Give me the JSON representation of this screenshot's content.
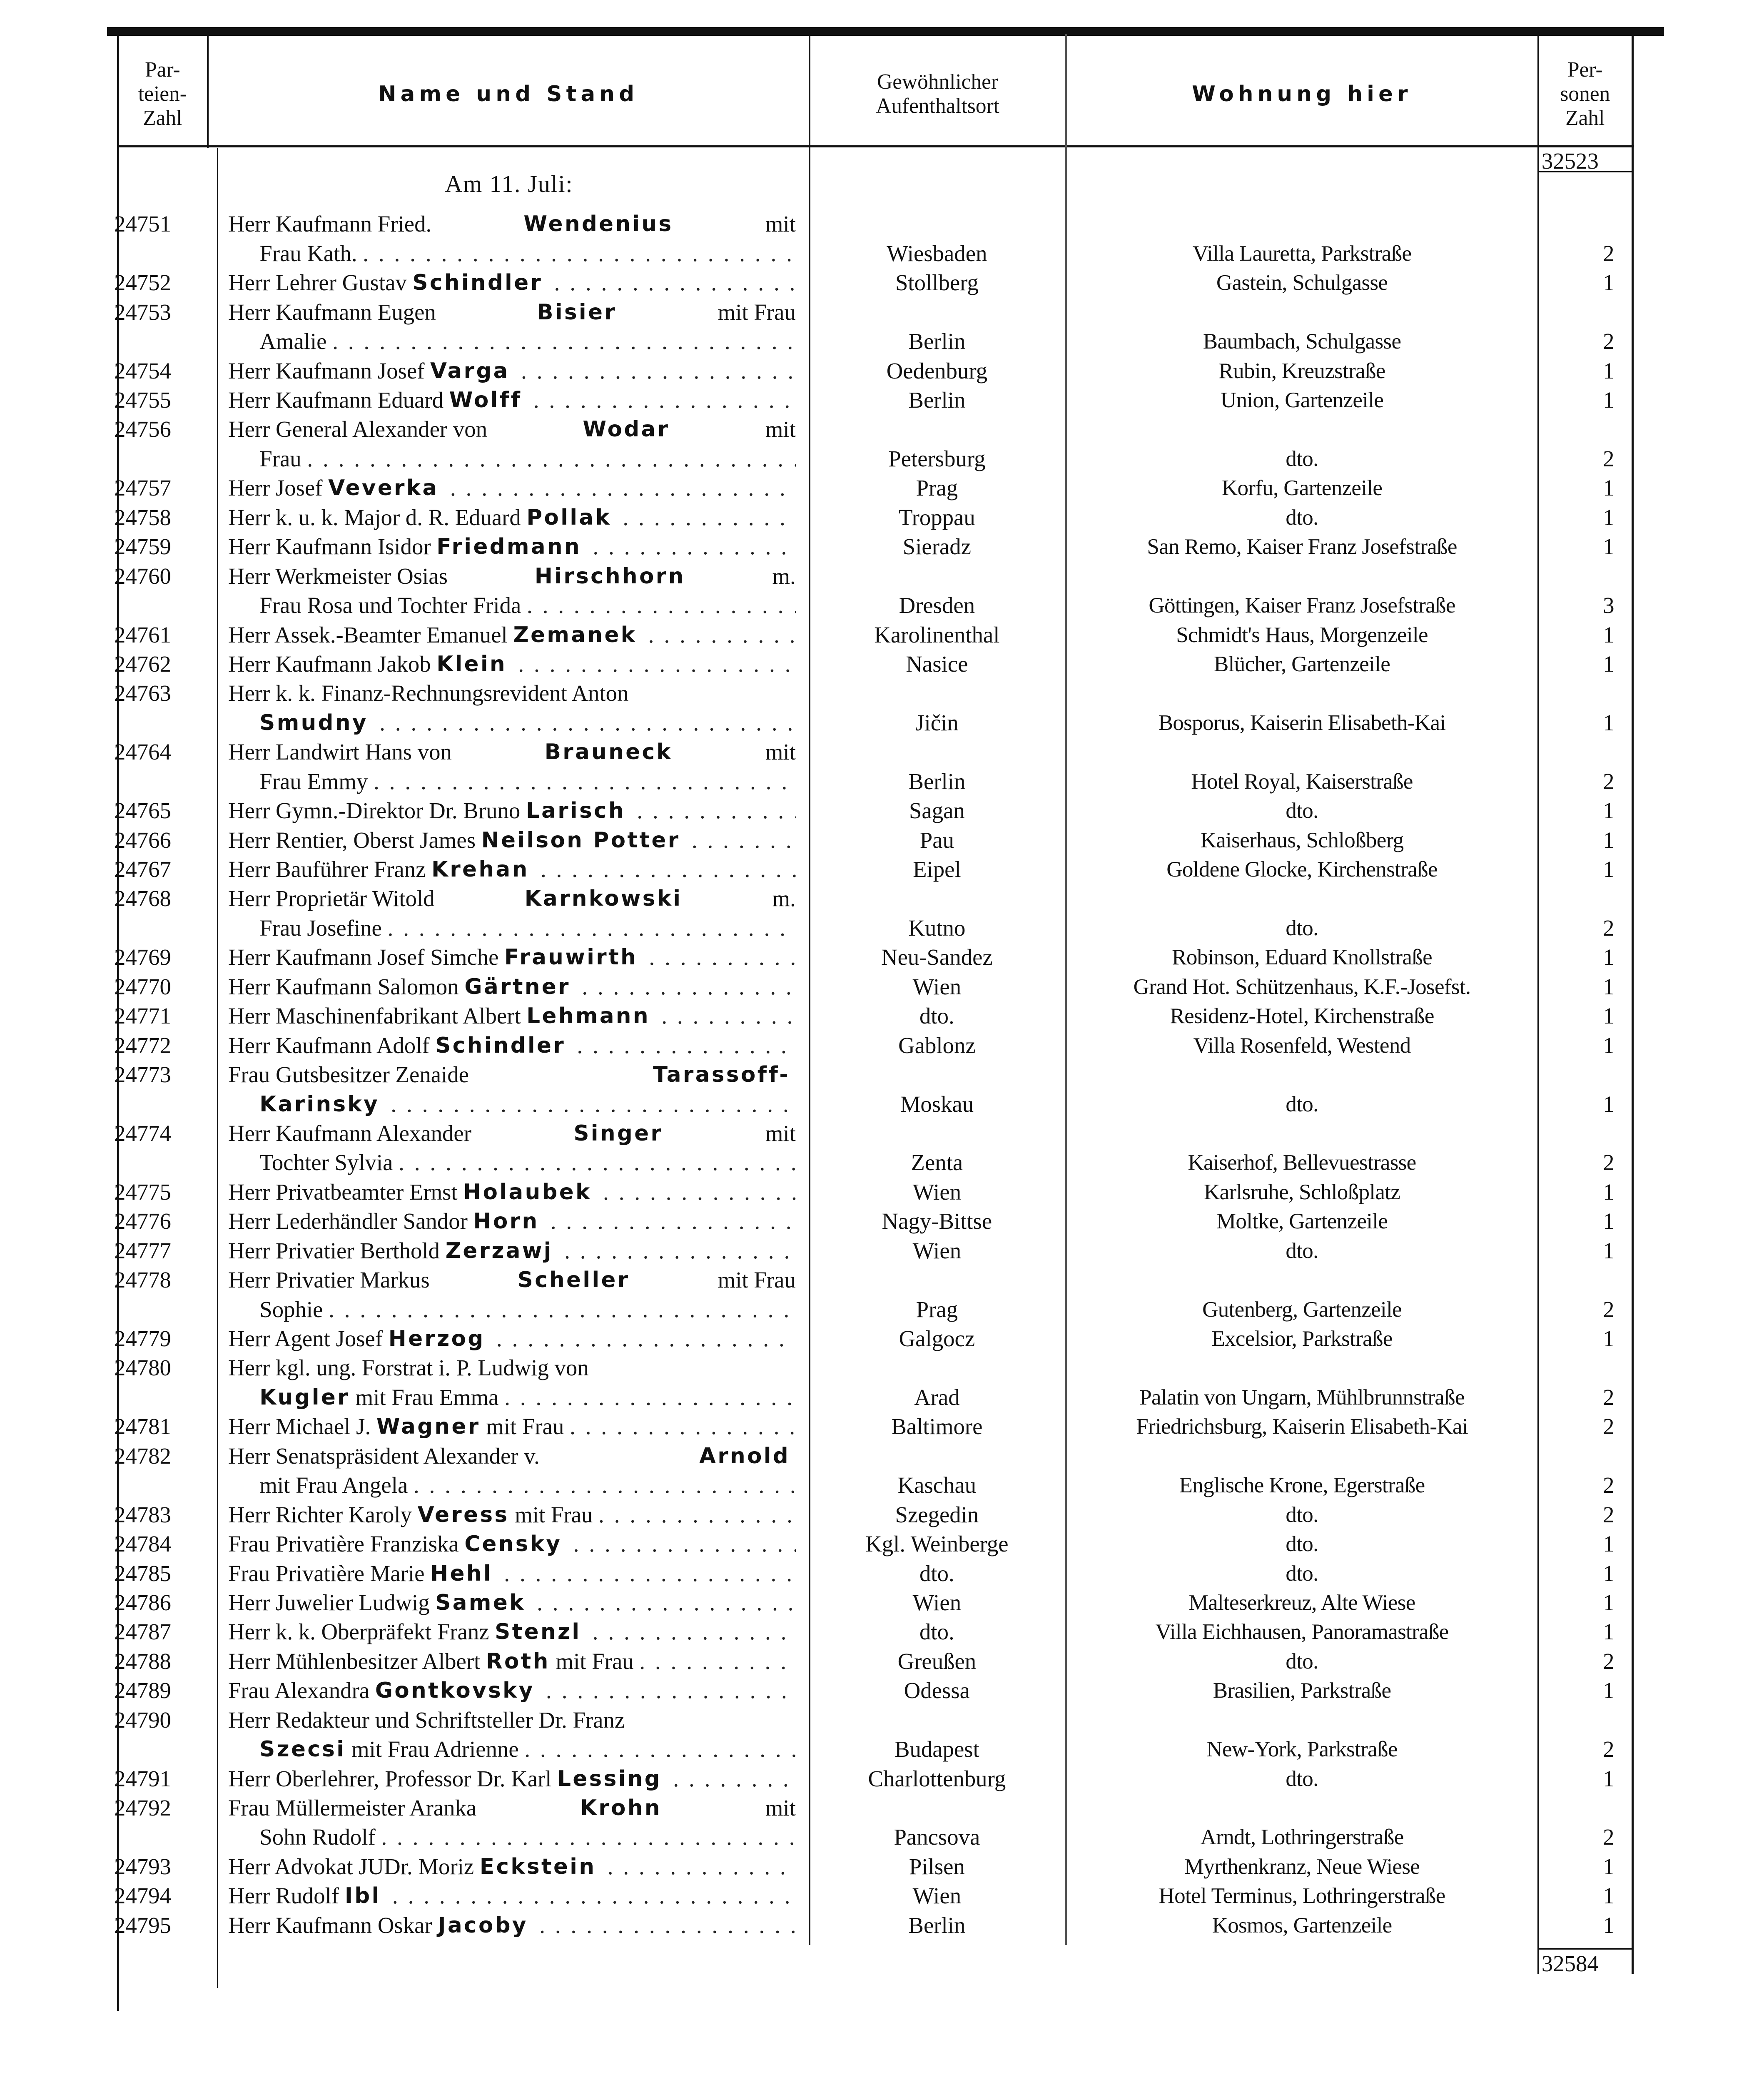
{
  "header": {
    "col_number": [
      "Par-",
      "teien-",
      "Zahl"
    ],
    "col_name": "Name und Stand",
    "col_origin": [
      "Gewöhnlicher",
      "Aufenthaltsort"
    ],
    "col_residence": "Wohnung hier",
    "col_persons": [
      "Per-",
      "sonen",
      "Zahl"
    ]
  },
  "carried_total": "32523",
  "date_heading": "Am 11. Juli:",
  "final_total": "32584",
  "entries": [
    {
      "no": "24751",
      "lines": [
        {
          "pre": "Herr Kaufmann Fried.",
          "bold": "Wendenius",
          "post": "mit"
        },
        {
          "pre": "Frau Kath."
        }
      ],
      "origin": "Wiesbaden",
      "residence": "Villa Lauretta, Parkstraße",
      "persons": "2"
    },
    {
      "no": "24752",
      "lines": [
        {
          "pre": "Herr Lehrer Gustav",
          "bold": "Schindler"
        }
      ],
      "origin": "Stollberg",
      "residence": "Gastein, Schulgasse",
      "persons": "1"
    },
    {
      "no": "24753",
      "lines": [
        {
          "pre": "Herr Kaufmann Eugen",
          "bold": "Bisier",
          "post": "mit Frau"
        },
        {
          "pre": "Amalie"
        }
      ],
      "origin": "Berlin",
      "residence": "Baumbach, Schulgasse",
      "persons": "2"
    },
    {
      "no": "24754",
      "lines": [
        {
          "pre": "Herr Kaufmann Josef",
          "bold": "Varga"
        }
      ],
      "origin": "Oedenburg",
      "residence": "Rubin, Kreuzstraße",
      "persons": "1"
    },
    {
      "no": "24755",
      "lines": [
        {
          "pre": "Herr Kaufmann Eduard",
          "bold": "Wolff"
        }
      ],
      "origin": "Berlin",
      "residence": "Union, Gartenzeile",
      "persons": "1"
    },
    {
      "no": "24756",
      "lines": [
        {
          "pre": "Herr General Alexander von",
          "bold": "Wodar",
          "post": "mit"
        },
        {
          "pre": "Frau"
        }
      ],
      "origin": "Petersburg",
      "residence": "dto.",
      "persons": "2"
    },
    {
      "no": "24757",
      "lines": [
        {
          "pre": "Herr Josef",
          "bold": "Veverka"
        }
      ],
      "origin": "Prag",
      "residence": "Korfu, Gartenzeile",
      "persons": "1"
    },
    {
      "no": "24758",
      "lines": [
        {
          "pre": "Herr k. u. k. Major d. R. Eduard",
          "bold": "Pollak"
        }
      ],
      "origin": "Troppau",
      "residence": "dto.",
      "persons": "1"
    },
    {
      "no": "24759",
      "lines": [
        {
          "pre": "Herr Kaufmann Isidor",
          "bold": "Friedmann"
        }
      ],
      "origin": "Sieradz",
      "residence": "San Remo, Kaiser Franz Josefstraße",
      "persons": "1"
    },
    {
      "no": "24760",
      "lines": [
        {
          "pre": "Herr Werkmeister Osias",
          "bold": "Hirschhorn",
          "post": "m."
        },
        {
          "pre": "Frau Rosa und Tochter Frida"
        }
      ],
      "origin": "Dresden",
      "residence": "Göttingen, Kaiser Franz Josefstraße",
      "persons": "3"
    },
    {
      "no": "24761",
      "lines": [
        {
          "pre": "Herr Assek.-Beamter Emanuel",
          "bold": "Zemanek"
        }
      ],
      "origin": "Karolinenthal",
      "residence": "Schmidt's Haus, Morgenzeile",
      "persons": "1"
    },
    {
      "no": "24762",
      "lines": [
        {
          "pre": "Herr Kaufmann Jakob",
          "bold": "Klein"
        }
      ],
      "origin": "Nasice",
      "residence": "Blücher, Gartenzeile",
      "persons": "1"
    },
    {
      "no": "24763",
      "lines": [
        {
          "pre": "Herr k. k. Finanz-Rechnungsrevident Anton"
        },
        {
          "bold": "Smudny"
        }
      ],
      "origin": "Jičin",
      "residence": "Bosporus, Kaiserin Elisabeth-Kai",
      "persons": "1"
    },
    {
      "no": "24764",
      "lines": [
        {
          "pre": "Herr Landwirt Hans von",
          "bold": "Brauneck",
          "post": "mit"
        },
        {
          "pre": "Frau Emmy"
        }
      ],
      "origin": "Berlin",
      "residence": "Hotel Royal, Kaiserstraße",
      "persons": "2"
    },
    {
      "no": "24765",
      "lines": [
        {
          "pre": "Herr Gymn.-Direktor Dr. Bruno",
          "bold": "Larisch"
        }
      ],
      "origin": "Sagan",
      "residence": "dto.",
      "persons": "1"
    },
    {
      "no": "24766",
      "lines": [
        {
          "pre": "Herr Rentier, Oberst James",
          "bold": "Neilson Potter"
        }
      ],
      "origin": "Pau",
      "residence": "Kaiserhaus, Schloßberg",
      "persons": "1"
    },
    {
      "no": "24767",
      "lines": [
        {
          "pre": "Herr Bauführer Franz",
          "bold": "Krehan"
        }
      ],
      "origin": "Eipel",
      "residence": "Goldene Glocke, Kirchenstraße",
      "persons": "1"
    },
    {
      "no": "24768",
      "lines": [
        {
          "pre": "Herr Proprietär Witold",
          "bold": "Karnkowski",
          "post": "m."
        },
        {
          "pre": "Frau Josefine"
        }
      ],
      "origin": "Kutno",
      "residence": "dto.",
      "persons": "2"
    },
    {
      "no": "24769",
      "lines": [
        {
          "pre": "Herr Kaufmann Josef Simche",
          "bold": "Frauwirth"
        }
      ],
      "origin": "Neu-Sandez",
      "residence": "Robinson, Eduard Knollstraße",
      "persons": "1"
    },
    {
      "no": "24770",
      "lines": [
        {
          "pre": "Herr Kaufmann Salomon",
          "bold": "Gärtner"
        }
      ],
      "origin": "Wien",
      "residence": "Grand Hot. Schützenhaus, K.F.-Josefst.",
      "persons": "1"
    },
    {
      "no": "24771",
      "lines": [
        {
          "pre": "Herr Maschinenfabrikant Albert",
          "bold": "Lehmann"
        }
      ],
      "origin": "dto.",
      "residence": "Residenz-Hotel, Kirchenstraße",
      "persons": "1"
    },
    {
      "no": "24772",
      "lines": [
        {
          "pre": "Herr Kaufmann Adolf",
          "bold": "Schindler"
        }
      ],
      "origin": "Gablonz",
      "residence": "Villa Rosenfeld, Westend",
      "persons": "1"
    },
    {
      "no": "24773",
      "lines": [
        {
          "pre": "Frau Gutsbesitzer Zenaide",
          "bold": "Tarassoff-"
        },
        {
          "bold": "Karinsky"
        }
      ],
      "origin": "Moskau",
      "residence": "dto.",
      "persons": "1"
    },
    {
      "no": "24774",
      "lines": [
        {
          "pre": "Herr Kaufmann Alexander",
          "bold": "Singer",
          "post": "mit"
        },
        {
          "pre": "Tochter Sylvia"
        }
      ],
      "origin": "Zenta",
      "residence": "Kaiserhof, Bellevuestrasse",
      "persons": "2"
    },
    {
      "no": "24775",
      "lines": [
        {
          "pre": "Herr Privatbeamter Ernst",
          "bold": "Holaubek"
        }
      ],
      "origin": "Wien",
      "residence": "Karlsruhe, Schloßplatz",
      "persons": "1"
    },
    {
      "no": "24776",
      "lines": [
        {
          "pre": "Herr Lederhändler Sandor",
          "bold": "Horn"
        }
      ],
      "origin": "Nagy-Bittse",
      "residence": "Moltke, Gartenzeile",
      "persons": "1"
    },
    {
      "no": "24777",
      "lines": [
        {
          "pre": "Herr Privatier Berthold",
          "bold": "Zerzawj"
        }
      ],
      "origin": "Wien",
      "residence": "dto.",
      "persons": "1"
    },
    {
      "no": "24778",
      "lines": [
        {
          "pre": "Herr Privatier Markus",
          "bold": "Scheller",
          "post": "mit Frau"
        },
        {
          "pre": "Sophie"
        }
      ],
      "origin": "Prag",
      "residence": "Gutenberg, Gartenzeile",
      "persons": "2"
    },
    {
      "no": "24779",
      "lines": [
        {
          "pre": "Herr Agent Josef",
          "bold": "Herzog"
        }
      ],
      "origin": "Galgocz",
      "residence": "Excelsior, Parkstraße",
      "persons": "1"
    },
    {
      "no": "24780",
      "lines": [
        {
          "pre": "Herr kgl. ung. Forstrat i. P. Ludwig von"
        },
        {
          "bold": "Kugler",
          "post": "mit Frau Emma"
        }
      ],
      "origin": "Arad",
      "residence": "Palatin von Ungarn, Mühlbrunnstraße",
      "persons": "2"
    },
    {
      "no": "24781",
      "lines": [
        {
          "pre": "Herr Michael J.",
          "bold": "Wagner",
          "post": "mit Frau"
        }
      ],
      "origin": "Baltimore",
      "residence": "Friedrichsburg, Kaiserin Elisabeth-Kai",
      "persons": "2"
    },
    {
      "no": "24782",
      "lines": [
        {
          "pre": "Herr Senatspräsident Alexander v.",
          "bold": "Arnold"
        },
        {
          "pre": "mit Frau Angela"
        }
      ],
      "origin": "Kaschau",
      "residence": "Englische Krone, Egerstraße",
      "persons": "2"
    },
    {
      "no": "24783",
      "lines": [
        {
          "pre": "Herr Richter Karoly",
          "bold": "Veress",
          "post": "mit Frau"
        }
      ],
      "origin": "Szegedin",
      "residence": "dto.",
      "persons": "2"
    },
    {
      "no": "24784",
      "lines": [
        {
          "pre": "Frau Privatière Franziska",
          "bold": "Censky"
        }
      ],
      "origin": "Kgl. Weinberge",
      "residence": "dto.",
      "persons": "1"
    },
    {
      "no": "24785",
      "lines": [
        {
          "pre": "Frau Privatière Marie",
          "bold": "Hehl"
        }
      ],
      "origin": "dto.",
      "residence": "dto.",
      "persons": "1"
    },
    {
      "no": "24786",
      "lines": [
        {
          "pre": "Herr Juwelier Ludwig",
          "bold": "Samek"
        }
      ],
      "origin": "Wien",
      "residence": "Malteserkreuz, Alte Wiese",
      "persons": "1"
    },
    {
      "no": "24787",
      "lines": [
        {
          "pre": "Herr k. k. Oberpräfekt Franz",
          "bold": "Stenzl"
        }
      ],
      "origin": "dto.",
      "residence": "Villa Eichhausen, Panoramastraße",
      "persons": "1"
    },
    {
      "no": "24788",
      "lines": [
        {
          "pre": "Herr Mühlenbesitzer Albert",
          "bold": "Roth",
          "post": "mit Frau"
        }
      ],
      "origin": "Greußen",
      "residence": "dto.",
      "persons": "2"
    },
    {
      "no": "24789",
      "lines": [
        {
          "pre": "Frau Alexandra",
          "bold": "Gontkovsky"
        }
      ],
      "origin": "Odessa",
      "residence": "Brasilien, Parkstraße",
      "persons": "1"
    },
    {
      "no": "24790",
      "lines": [
        {
          "pre": "Herr Redakteur und Schriftsteller Dr. Franz"
        },
        {
          "bold": "Szecsi",
          "post": "mit Frau Adrienne"
        }
      ],
      "origin": "Budapest",
      "residence": "New-York, Parkstraße",
      "persons": "2"
    },
    {
      "no": "24791",
      "lines": [
        {
          "pre": "Herr Oberlehrer, Professor Dr. Karl",
          "bold": "Lessing"
        }
      ],
      "origin": "Charlottenburg",
      "residence": "dto.",
      "persons": "1"
    },
    {
      "no": "24792",
      "lines": [
        {
          "pre": "Frau Müllermeister Aranka",
          "bold": "Krohn",
          "post": "mit"
        },
        {
          "pre": "Sohn Rudolf"
        }
      ],
      "origin": "Pancsova",
      "residence": "Arndt, Lothringerstraße",
      "persons": "2"
    },
    {
      "no": "24793",
      "lines": [
        {
          "pre": "Herr Advokat JUDr. Moriz",
          "bold": "Eckstein"
        }
      ],
      "origin": "Pilsen",
      "residence": "Myrthenkranz, Neue Wiese",
      "persons": "1"
    },
    {
      "no": "24794",
      "lines": [
        {
          "pre": "Herr Rudolf",
          "bold": "Ibl"
        }
      ],
      "origin": "Wien",
      "residence": "Hotel Terminus, Lothringerstraße",
      "persons": "1"
    },
    {
      "no": "24795",
      "lines": [
        {
          "pre": "Herr Kaufmann Oskar",
          "bold": "Jacoby"
        }
      ],
      "origin": "Berlin",
      "residence": "Kosmos, Gartenzeile",
      "persons": "1"
    }
  ]
}
